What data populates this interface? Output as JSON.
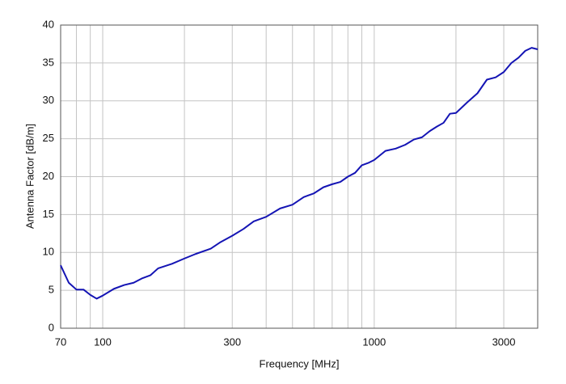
{
  "chart_data": {
    "type": "line",
    "xlabel": "Frequency [MHz]",
    "ylabel": "Antenna Factor [dB/m]",
    "xscale": "log",
    "grid": true,
    "xlim": [
      70,
      4000
    ],
    "ylim": [
      0,
      40
    ],
    "xticks": [
      70,
      100,
      300,
      1000,
      3000
    ],
    "xminor": [
      80,
      90,
      200,
      400,
      500,
      600,
      700,
      800,
      900,
      2000
    ],
    "yticks": [
      0,
      5,
      10,
      15,
      20,
      25,
      30,
      35,
      40
    ],
    "x": [
      70,
      75,
      80,
      85,
      90,
      95,
      100,
      110,
      120,
      130,
      140,
      150,
      160,
      180,
      200,
      220,
      250,
      270,
      300,
      330,
      360,
      400,
      450,
      500,
      550,
      600,
      650,
      700,
      750,
      800,
      850,
      900,
      950,
      1000,
      1100,
      1200,
      1300,
      1400,
      1500,
      1600,
      1700,
      1800,
      1900,
      2000,
      2200,
      2400,
      2600,
      2800,
      3000,
      3200,
      3400,
      3600,
      3800,
      4000
    ],
    "series": [
      {
        "color": "#1414b4",
        "values": [
          8.3,
          6.0,
          5.1,
          5.1,
          4.4,
          3.9,
          4.3,
          5.2,
          5.7,
          6.0,
          6.6,
          7.0,
          7.9,
          8.5,
          9.2,
          9.8,
          10.5,
          11.3,
          12.2,
          13.1,
          14.1,
          14.7,
          15.8,
          16.3,
          17.3,
          17.8,
          18.6,
          19.0,
          19.3,
          20.0,
          20.5,
          21.5,
          21.8,
          22.2,
          23.4,
          23.7,
          24.2,
          24.9,
          25.2,
          26.0,
          26.6,
          27.1,
          28.3,
          28.4,
          29.8,
          31.0,
          32.8,
          33.1,
          33.8,
          35.0,
          35.7,
          36.6,
          37.0,
          36.8
        ]
      }
    ]
  }
}
